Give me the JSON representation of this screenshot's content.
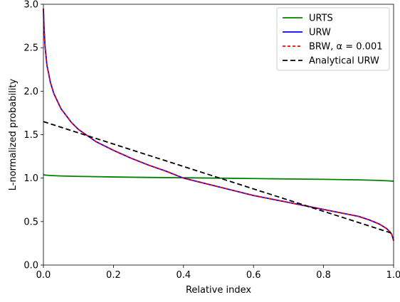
{
  "chart_data": {
    "type": "line",
    "title": "",
    "xlabel": "Relative index",
    "ylabel": "L-normalized probability",
    "xlim": [
      0.0,
      1.0
    ],
    "ylim": [
      0.0,
      3.0
    ],
    "xticks": [
      0.0,
      0.2,
      0.4,
      0.6,
      0.8,
      1.0
    ],
    "xtick_labels": [
      "0.0",
      "0.2",
      "0.4",
      "0.6",
      "0.8",
      "1.0"
    ],
    "yticks": [
      0.0,
      0.5,
      1.0,
      1.5,
      2.0,
      2.5,
      3.0
    ],
    "ytick_labels": [
      "0.0",
      "0.5",
      "1.0",
      "1.5",
      "2.0",
      "2.5",
      "3.0"
    ],
    "grid": false,
    "legend": {
      "placement": "top-right"
    },
    "series": [
      {
        "name": "URTS",
        "color": "#008000",
        "style": "solid",
        "x": [
          0.0,
          0.005,
          0.02,
          0.05,
          0.1,
          0.2,
          0.3,
          0.4,
          0.5,
          0.6,
          0.7,
          0.8,
          0.9,
          0.95,
          0.98,
          1.0
        ],
        "y": [
          1.04,
          1.035,
          1.03,
          1.025,
          1.02,
          1.013,
          1.008,
          1.004,
          1.0,
          0.995,
          0.99,
          0.986,
          0.98,
          0.975,
          0.97,
          0.965
        ]
      },
      {
        "name": "URW",
        "color": "#0000ff",
        "style": "solid",
        "x": [
          0.0,
          0.002,
          0.005,
          0.01,
          0.02,
          0.03,
          0.05,
          0.08,
          0.1,
          0.15,
          0.2,
          0.25,
          0.3,
          0.35,
          0.4,
          0.45,
          0.5,
          0.55,
          0.6,
          0.65,
          0.7,
          0.75,
          0.8,
          0.85,
          0.9,
          0.93,
          0.96,
          0.98,
          0.99,
          0.995,
          1.0
        ],
        "y": [
          2.95,
          2.7,
          2.5,
          2.3,
          2.1,
          1.97,
          1.8,
          1.64,
          1.56,
          1.42,
          1.32,
          1.23,
          1.15,
          1.08,
          1.0,
          0.95,
          0.9,
          0.85,
          0.8,
          0.76,
          0.72,
          0.68,
          0.64,
          0.6,
          0.56,
          0.52,
          0.47,
          0.42,
          0.38,
          0.35,
          0.28
        ]
      },
      {
        "name": "BRW, α = 0.001",
        "color": "#ff0000",
        "style": "dashed",
        "x": [
          0.0,
          0.002,
          0.005,
          0.01,
          0.02,
          0.03,
          0.05,
          0.08,
          0.1,
          0.15,
          0.2,
          0.25,
          0.3,
          0.35,
          0.4,
          0.45,
          0.5,
          0.55,
          0.6,
          0.65,
          0.7,
          0.75,
          0.8,
          0.85,
          0.9,
          0.93,
          0.96,
          0.98,
          0.99,
          0.995,
          1.0
        ],
        "y": [
          2.95,
          2.7,
          2.5,
          2.3,
          2.1,
          1.97,
          1.8,
          1.64,
          1.56,
          1.42,
          1.32,
          1.23,
          1.15,
          1.08,
          1.0,
          0.95,
          0.9,
          0.85,
          0.8,
          0.76,
          0.72,
          0.68,
          0.64,
          0.6,
          0.56,
          0.52,
          0.47,
          0.42,
          0.38,
          0.35,
          0.28
        ]
      },
      {
        "name": "Analytical URW",
        "color": "#000000",
        "style": "dashed",
        "x": [
          0.0,
          1.0
        ],
        "y": [
          1.65,
          0.36
        ]
      }
    ]
  }
}
